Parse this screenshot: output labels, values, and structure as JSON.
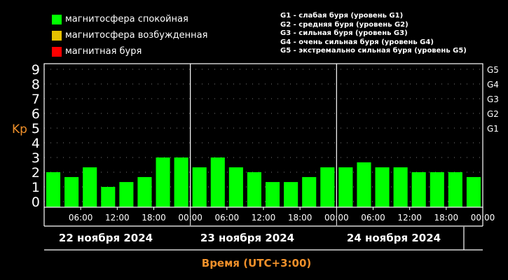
{
  "legend": {
    "items": [
      {
        "label": "магнитосфера спокойная",
        "color": "#00ff00"
      },
      {
        "label": "магнитосфера возбужденная",
        "color": "#e6c000"
      },
      {
        "label": "магнитная буря",
        "color": "#ff0000"
      }
    ],
    "storm_levels": [
      "G1 - слабая буря (уровень G1)",
      "G2 - средняя буря (уровень G2)",
      "G3 - сильная буря (уровень G3)",
      "G4 - очень сильная буря (уровень G4)",
      "G5 - экстремально сильная буря (уровень G5)"
    ]
  },
  "chart_data": {
    "type": "bar",
    "ylabel": "Kp",
    "xlabel": "Время (UTC+3:00)",
    "ylim": [
      0,
      9
    ],
    "yticks": [
      "0",
      "1",
      "2",
      "3",
      "4",
      "5",
      "6",
      "7",
      "8",
      "9"
    ],
    "g_levels": [
      {
        "label": "G1",
        "value": 5
      },
      {
        "label": "G2",
        "value": 6
      },
      {
        "label": "G3",
        "value": 7
      },
      {
        "label": "G4",
        "value": 8
      },
      {
        "label": "G5",
        "value": 9
      }
    ],
    "xtick_labels": [
      "06:00",
      "12:00",
      "18:00",
      "00:00",
      "06:00",
      "12:00",
      "18:00",
      "00:00",
      "06:00",
      "12:00",
      "18:00",
      "00:00"
    ],
    "days": [
      "22 ноября 2024",
      "23 ноября 2024",
      "24 ноября 2024"
    ],
    "bar_color": "#00ff00",
    "values": [
      2.0,
      1.67,
      2.33,
      1.0,
      1.33,
      1.67,
      3.0,
      3.0,
      2.33,
      3.0,
      2.33,
      2.0,
      1.33,
      1.33,
      1.67,
      2.33,
      2.33,
      2.67,
      2.33,
      2.33,
      2.0,
      2.0,
      2.0,
      1.67
    ],
    "grid": "dotted"
  }
}
